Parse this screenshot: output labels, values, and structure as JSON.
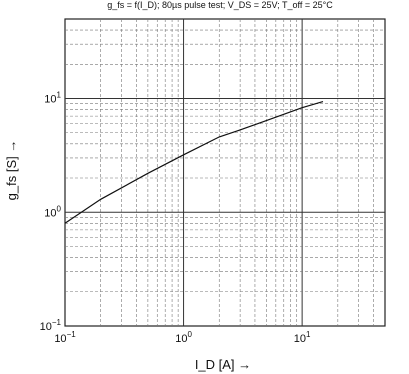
{
  "chart_data": {
    "type": "line",
    "title": "g_fs = f(I_D); 80µs pulse test; V_DS = 25V; T_off = 25°C",
    "xlabel": "I_D [A] →",
    "ylabel": "g_fs [S] →",
    "xscale": "log",
    "yscale": "log",
    "xlim": [
      0.1,
      50
    ],
    "ylim": [
      0.1,
      50
    ],
    "x_ticks": [
      {
        "value": 0.1,
        "base": "10",
        "exp": "−1"
      },
      {
        "value": 1,
        "base": "10",
        "exp": "0"
      },
      {
        "value": 10,
        "base": "10",
        "exp": "1"
      }
    ],
    "y_ticks": [
      {
        "value": 0.1,
        "base": "10",
        "exp": "−1"
      },
      {
        "value": 1,
        "base": "10",
        "exp": "0"
      },
      {
        "value": 10,
        "base": "10",
        "exp": "1"
      }
    ],
    "grid": true,
    "series": [
      {
        "x": [
          0.1,
          0.2,
          0.5,
          1.0,
          2.0,
          3.0,
          5.0,
          10.0,
          15.0
        ],
        "y": [
          0.8,
          1.3,
          2.2,
          3.2,
          4.6,
          5.3,
          6.4,
          8.3,
          9.4
        ]
      }
    ]
  }
}
